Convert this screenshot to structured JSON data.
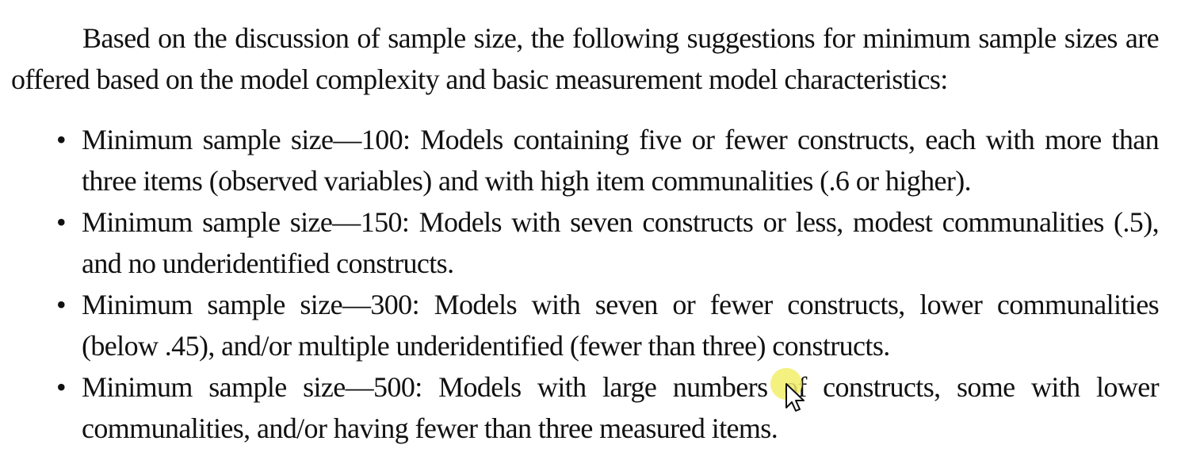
{
  "intro": "Based on the discussion of sample size, the following suggestions for minimum sample sizes are offered based on the model complexity and basic measurement model characteristics:",
  "bullet_glyph": "•",
  "bullets": [
    "Minimum sample size—100: Models containing five or fewer constructs, each with more than three items (observed variables) and with high item communalities (.6 or higher).",
    "Minimum sample size—150: Models with seven constructs or less, modest communalities (.5), and no underidentified constructs.",
    "Minimum sample size—300: Models with seven or fewer constructs, lower communalities (below .45), and/or multiple underidentified (fewer than three) constructs.",
    "Minimum sample size—500: Models with large numbers of constructs, some with lower communalities, and/or having fewer than three measured items."
  ],
  "colors": {
    "text": "#111111",
    "background": "#ffffff",
    "cursor_highlight": "#f2ee6b"
  },
  "icons": {
    "cursor": "mouse-pointer-icon"
  }
}
